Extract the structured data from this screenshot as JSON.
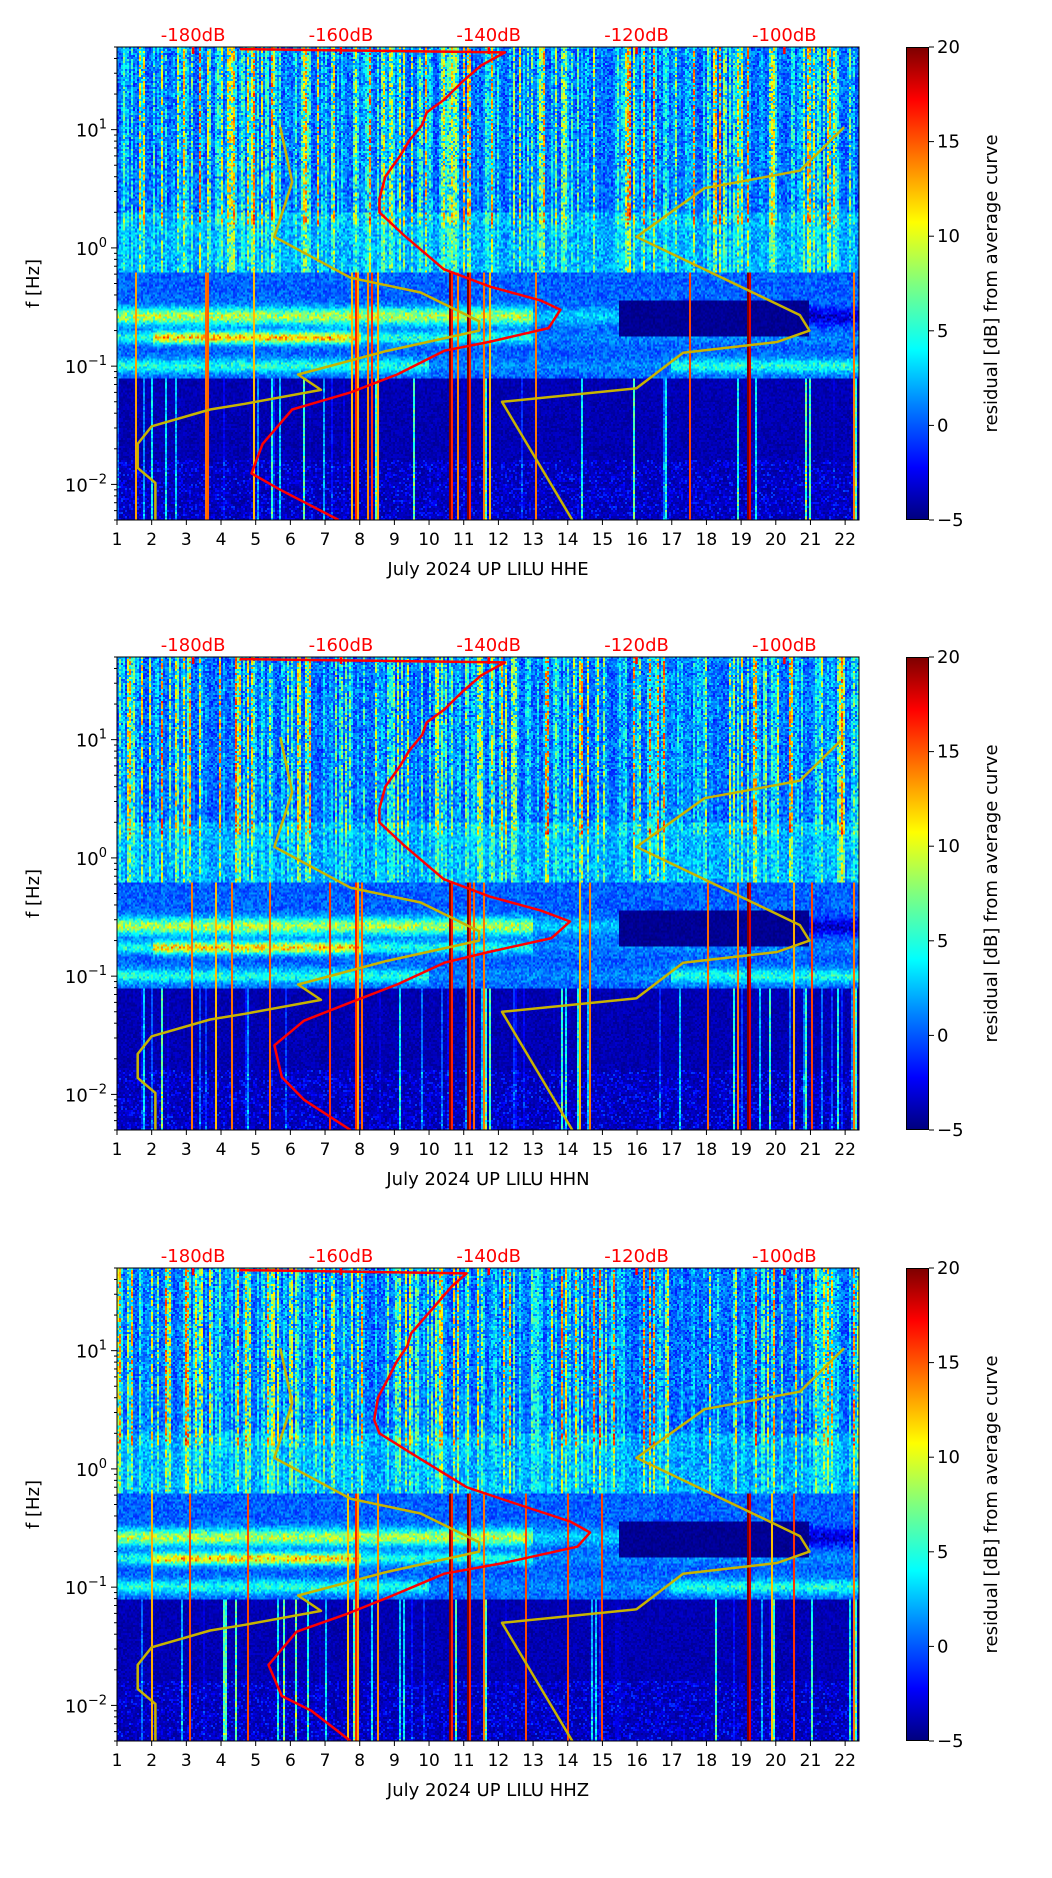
{
  "chart_data": [
    {
      "type": "heatmap",
      "xlabel": "July 2024 UP LILU  HHE",
      "ylabel": "f [Hz]",
      "xlim": [
        1,
        22.4
      ],
      "ylim": [
        0.005,
        50
      ],
      "yscale": "log",
      "x_ticks": [
        "1",
        "2",
        "3",
        "4",
        "5",
        "6",
        "7",
        "8",
        "9",
        "10",
        "11",
        "12",
        "13",
        "14",
        "15",
        "16",
        "17",
        "18",
        "19",
        "20",
        "21",
        "22"
      ],
      "y_ticks": [
        {
          "value": 0.01,
          "base": "10",
          "exp": "−2"
        },
        {
          "value": 0.1,
          "base": "10",
          "exp": "−1"
        },
        {
          "value": 1,
          "base": "10",
          "exp": "0"
        },
        {
          "value": 10,
          "base": "10",
          "exp": "1"
        }
      ],
      "top_axis": {
        "range": [
          -190.3,
          -89.9
        ],
        "ticks": [
          -180,
          -160,
          -140,
          -120,
          -100
        ],
        "labels": [
          "-180dB",
          "-160dB",
          "-140dB",
          "-120dB",
          "-100dB"
        ],
        "color": "#ff0000"
      },
      "colorbar": {
        "label": "residual [dB] from average curve",
        "range": [
          -5,
          20
        ],
        "ticks": [
          "−5",
          "0",
          "5",
          "10",
          "15",
          "20"
        ],
        "tick_values": [
          -5,
          0,
          5,
          10,
          15,
          20
        ],
        "colormap": "jet"
      },
      "series": [
        {
          "id": "psd",
          "color": "#ff0000",
          "points_db_hz": [
            [
              -173.7,
              48
            ],
            [
              -137.8,
              45
            ],
            [
              -141,
              35
            ],
            [
              -143.7,
              25
            ],
            [
              -146,
              18
            ],
            [
              -148.4,
              14
            ],
            [
              -149,
              11
            ],
            [
              -150.8,
              8
            ],
            [
              -152,
              6
            ],
            [
              -154,
              4
            ],
            [
              -154.8,
              2.6
            ],
            [
              -154.8,
              2
            ],
            [
              -151.6,
              1.3
            ],
            [
              -146.1,
              0.66
            ],
            [
              -139.8,
              0.47
            ],
            [
              -133,
              0.36
            ],
            [
              -130.3,
              0.3
            ],
            [
              -131.9,
              0.21
            ],
            [
              -140,
              0.16
            ],
            [
              -146,
              0.135
            ],
            [
              -152.4,
              0.085
            ],
            [
              -158.7,
              0.06
            ],
            [
              -166.6,
              0.043
            ],
            [
              -170.6,
              0.022
            ],
            [
              -172.1,
              0.0124
            ],
            [
              -168.2,
              0.009
            ],
            [
              -160.3,
              0.005
            ]
          ]
        },
        {
          "id": "nlnm",
          "color": "#c8b400",
          "points_db_hz": [
            [
              -168.2,
              10.5
            ],
            [
              -166.6,
              3.6
            ],
            [
              -169.0,
              1.24
            ],
            [
              -158.7,
              0.56
            ],
            [
              -149.2,
              0.42
            ],
            [
              -141.3,
              0.24
            ],
            [
              -141.3,
              0.2
            ],
            [
              -153.9,
              0.134
            ],
            [
              -165.8,
              0.085
            ],
            [
              -162.7,
              0.063
            ],
            [
              -173.0,
              0.048
            ],
            [
              -177.7,
              0.043
            ],
            [
              -185.6,
              0.031
            ],
            [
              -187.5,
              0.022
            ],
            [
              -187.5,
              0.0138
            ],
            [
              -185.1,
              0.0103
            ],
            [
              -185.1,
              0.005
            ]
          ]
        },
        {
          "id": "nhnm",
          "color": "#c8b400",
          "points_db_hz": [
            [
              -91.9,
              10.5
            ],
            [
              -97.9,
              4.5
            ],
            [
              -110.8,
              3.2
            ],
            [
              -120.0,
              1.24
            ],
            [
              -108.2,
              0.55
            ],
            [
              -97.9,
              0.27
            ],
            [
              -96.6,
              0.2
            ],
            [
              -101.0,
              0.16
            ],
            [
              -113.7,
              0.13
            ],
            [
              -120.0,
              0.065
            ],
            [
              -138.2,
              0.05
            ],
            [
              -128.7,
              0.005
            ]
          ]
        }
      ]
    },
    {
      "type": "heatmap",
      "xlabel": "July 2024 UP LILU  HHN",
      "ylabel": "f [Hz]",
      "xlim": [
        1,
        22.4
      ],
      "ylim": [
        0.005,
        50
      ],
      "yscale": "log",
      "x_ticks": [
        "1",
        "2",
        "3",
        "4",
        "5",
        "6",
        "7",
        "8",
        "9",
        "10",
        "11",
        "12",
        "13",
        "14",
        "15",
        "16",
        "17",
        "18",
        "19",
        "20",
        "21",
        "22"
      ],
      "y_ticks": [
        {
          "value": 0.01,
          "base": "10",
          "exp": "−2"
        },
        {
          "value": 0.1,
          "base": "10",
          "exp": "−1"
        },
        {
          "value": 1,
          "base": "10",
          "exp": "0"
        },
        {
          "value": 10,
          "base": "10",
          "exp": "1"
        }
      ],
      "top_axis": {
        "range": [
          -190.3,
          -89.9
        ],
        "ticks": [
          -180,
          -160,
          -140,
          -120,
          -100
        ],
        "labels": [
          "-180dB",
          "-160dB",
          "-140dB",
          "-120dB",
          "-100dB"
        ],
        "color": "#ff0000"
      },
      "colorbar": {
        "label": "residual [dB] from average curve",
        "range": [
          -5,
          20
        ],
        "ticks": [
          "−5",
          "0",
          "5",
          "10",
          "15",
          "20"
        ],
        "tick_values": [
          -5,
          0,
          5,
          10,
          15,
          20
        ],
        "colormap": "jet"
      },
      "series": [
        {
          "id": "psd",
          "color": "#ff0000",
          "points_db_hz": [
            [
              -173.7,
              48
            ],
            [
              -137.8,
              45
            ],
            [
              -141,
              35
            ],
            [
              -143.7,
              25
            ],
            [
              -146,
              18
            ],
            [
              -148.4,
              14
            ],
            [
              -149,
              11
            ],
            [
              -150.8,
              8
            ],
            [
              -152,
              6
            ],
            [
              -154,
              4
            ],
            [
              -154.8,
              2.6
            ],
            [
              -154.8,
              2
            ],
            [
              -151.6,
              1.3
            ],
            [
              -146.1,
              0.66
            ],
            [
              -139.8,
              0.47
            ],
            [
              -133,
              0.36
            ],
            [
              -129,
              0.29
            ],
            [
              -131.5,
              0.21
            ],
            [
              -140,
              0.16
            ],
            [
              -146,
              0.13
            ],
            [
              -152.4,
              0.085
            ],
            [
              -158.7,
              0.06
            ],
            [
              -165,
              0.042
            ],
            [
              -169,
              0.026
            ],
            [
              -168,
              0.014
            ],
            [
              -165,
              0.009
            ],
            [
              -158.7,
              0.005
            ]
          ]
        },
        {
          "id": "nlnm",
          "color": "#c8b400",
          "points_db_hz": [
            [
              -168.2,
              10.5
            ],
            [
              -166.6,
              3.6
            ],
            [
              -169.0,
              1.24
            ],
            [
              -158.7,
              0.56
            ],
            [
              -149.2,
              0.42
            ],
            [
              -141.3,
              0.24
            ],
            [
              -141.3,
              0.2
            ],
            [
              -153.9,
              0.134
            ],
            [
              -165.8,
              0.085
            ],
            [
              -162.7,
              0.063
            ],
            [
              -173.0,
              0.048
            ],
            [
              -177.7,
              0.043
            ],
            [
              -185.6,
              0.031
            ],
            [
              -187.5,
              0.022
            ],
            [
              -187.5,
              0.0138
            ],
            [
              -185.1,
              0.0103
            ],
            [
              -185.1,
              0.005
            ]
          ]
        },
        {
          "id": "nhnm",
          "color": "#c8b400",
          "points_db_hz": [
            [
              -91.9,
              10.5
            ],
            [
              -97.9,
              4.5
            ],
            [
              -110.8,
              3.2
            ],
            [
              -120.0,
              1.24
            ],
            [
              -108.2,
              0.55
            ],
            [
              -97.9,
              0.27
            ],
            [
              -96.6,
              0.2
            ],
            [
              -101.0,
              0.16
            ],
            [
              -113.7,
              0.13
            ],
            [
              -120.0,
              0.065
            ],
            [
              -138.2,
              0.05
            ],
            [
              -128.7,
              0.005
            ]
          ]
        }
      ]
    },
    {
      "type": "heatmap",
      "xlabel": "July 2024 UP LILU  HHZ",
      "ylabel": "f [Hz]",
      "xlim": [
        1,
        22.4
      ],
      "ylim": [
        0.005,
        50
      ],
      "yscale": "log",
      "x_ticks": [
        "1",
        "2",
        "3",
        "4",
        "5",
        "6",
        "7",
        "8",
        "9",
        "10",
        "11",
        "12",
        "13",
        "14",
        "15",
        "16",
        "17",
        "18",
        "19",
        "20",
        "21",
        "22"
      ],
      "y_ticks": [
        {
          "value": 0.01,
          "base": "10",
          "exp": "−2"
        },
        {
          "value": 0.1,
          "base": "10",
          "exp": "−1"
        },
        {
          "value": 1,
          "base": "10",
          "exp": "0"
        },
        {
          "value": 10,
          "base": "10",
          "exp": "1"
        }
      ],
      "top_axis": {
        "range": [
          -190.3,
          -89.9
        ],
        "ticks": [
          -180,
          -160,
          -140,
          -120,
          -100
        ],
        "labels": [
          "-180dB",
          "-160dB",
          "-140dB",
          "-120dB",
          "-100dB"
        ],
        "color": "#ff0000"
      },
      "colorbar": {
        "label": "residual [dB] from average curve",
        "range": [
          -5,
          20
        ],
        "ticks": [
          "−5",
          "0",
          "5",
          "10",
          "15",
          "20"
        ],
        "tick_values": [
          -5,
          0,
          5,
          10,
          15,
          20
        ],
        "colormap": "jet"
      },
      "series": [
        {
          "id": "psd",
          "color": "#ff0000",
          "points_db_hz": [
            [
              -173.7,
              48
            ],
            [
              -143,
              45
            ],
            [
              -145,
              35
            ],
            [
              -147,
              25
            ],
            [
              -149,
              18
            ],
            [
              -150.5,
              14
            ],
            [
              -151,
              11
            ],
            [
              -152.5,
              8
            ],
            [
              -153.5,
              6
            ],
            [
              -155,
              4
            ],
            [
              -155.5,
              2.6
            ],
            [
              -154.8,
              2
            ],
            [
              -150,
              1.3
            ],
            [
              -143,
              0.7
            ],
            [
              -136,
              0.5
            ],
            [
              -129,
              0.36
            ],
            [
              -126.3,
              0.29
            ],
            [
              -128,
              0.22
            ],
            [
              -138,
              0.16
            ],
            [
              -146,
              0.13
            ],
            [
              -153,
              0.085
            ],
            [
              -159,
              0.06
            ],
            [
              -166,
              0.042
            ],
            [
              -169.8,
              0.022
            ],
            [
              -168,
              0.012
            ],
            [
              -164,
              0.009
            ],
            [
              -158.7,
              0.005
            ]
          ]
        },
        {
          "id": "nlnm",
          "color": "#c8b400",
          "points_db_hz": [
            [
              -168.2,
              10.5
            ],
            [
              -166.6,
              3.6
            ],
            [
              -169.0,
              1.24
            ],
            [
              -158.7,
              0.56
            ],
            [
              -149.2,
              0.42
            ],
            [
              -141.3,
              0.24
            ],
            [
              -141.3,
              0.2
            ],
            [
              -153.9,
              0.134
            ],
            [
              -165.8,
              0.085
            ],
            [
              -162.7,
              0.063
            ],
            [
              -173.0,
              0.048
            ],
            [
              -177.7,
              0.043
            ],
            [
              -185.6,
              0.031
            ],
            [
              -187.5,
              0.022
            ],
            [
              -187.5,
              0.0138
            ],
            [
              -185.1,
              0.0103
            ],
            [
              -185.1,
              0.005
            ]
          ]
        },
        {
          "id": "nhnm",
          "color": "#c8b400",
          "points_db_hz": [
            [
              -91.9,
              10.5
            ],
            [
              -97.9,
              4.5
            ],
            [
              -110.8,
              3.2
            ],
            [
              -120.0,
              1.24
            ],
            [
              -108.2,
              0.55
            ],
            [
              -97.9,
              0.27
            ],
            [
              -96.6,
              0.2
            ],
            [
              -101.0,
              0.16
            ],
            [
              -113.7,
              0.13
            ],
            [
              -120.0,
              0.065
            ],
            [
              -138.2,
              0.05
            ],
            [
              -128.7,
              0.005
            ]
          ]
        }
      ]
    }
  ]
}
